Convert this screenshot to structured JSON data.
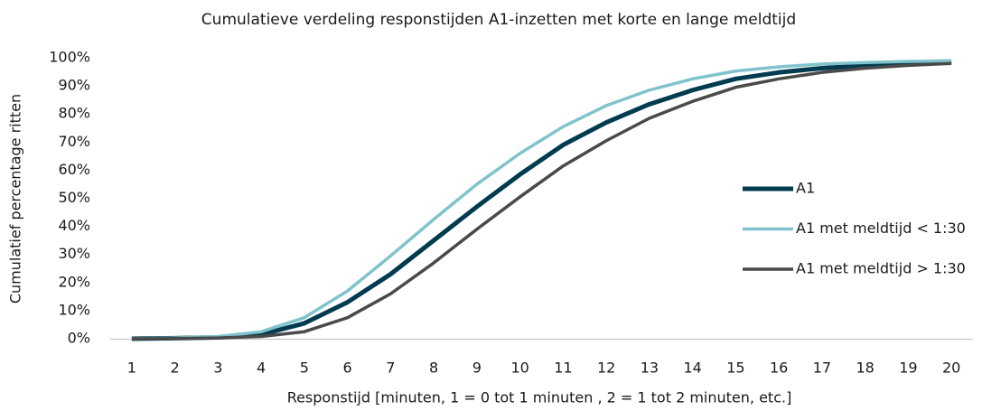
{
  "chart_data": {
    "type": "line",
    "title": "Cumulatieve verdeling responstijden A1-inzetten met korte en lange meldtijd",
    "x_label": "Responstijd [minuten, 1 = 0 tot 1 minuten , 2 = 1 tot 2 minuten, etc.]",
    "y_label": "Cumulatief percentage ritten",
    "categories": [
      "1",
      "2",
      "3",
      "4",
      "5",
      "6",
      "7",
      "8",
      "9",
      "10",
      "11",
      "12",
      "13",
      "14",
      "15",
      "16",
      "17",
      "18",
      "19",
      "20"
    ],
    "series": [
      {
        "name": "A1",
        "color": "#003b4f",
        "width": 5,
        "values": [
          0,
          0.2,
          0.5,
          1.5,
          5.5,
          13,
          23,
          35,
          47,
          58.5,
          69,
          77,
          83.5,
          88.5,
          92.5,
          94.8,
          96.3,
          97.3,
          97.9,
          98.5
        ]
      },
      {
        "name": "A1 met meldtijd < 1:30",
        "color": "#80c3cc",
        "width": 3.5,
        "values": [
          0,
          0.3,
          0.8,
          2.5,
          7.5,
          17,
          29.5,
          42.5,
          55,
          66,
          75.5,
          83,
          88.5,
          92.5,
          95.3,
          96.8,
          97.8,
          98.3,
          98.7,
          99
        ]
      },
      {
        "name": "A1 met meldtijd > 1:30",
        "color": "#4a4a4a",
        "width": 3.5,
        "values": [
          0,
          0.1,
          0.3,
          0.8,
          2.5,
          7.5,
          16,
          27,
          39,
          50.5,
          61.5,
          70.5,
          78.5,
          84.5,
          89.5,
          92.5,
          94.8,
          96.3,
          97.3,
          98
        ]
      }
    ],
    "ylim": [
      0,
      100
    ],
    "yticks": [
      {
        "value": 0,
        "label": "0%"
      },
      {
        "value": 10,
        "label": "10%"
      },
      {
        "value": 20,
        "label": "20%"
      },
      {
        "value": 30,
        "label": "30%"
      },
      {
        "value": 40,
        "label": "40%"
      },
      {
        "value": 50,
        "label": "50%"
      },
      {
        "value": 60,
        "label": "60%"
      },
      {
        "value": 70,
        "label": "70%"
      },
      {
        "value": 80,
        "label": "80%"
      },
      {
        "value": 90,
        "label": "90%"
      },
      {
        "value": 100,
        "label": "100%"
      }
    ],
    "grid": false,
    "legend": "right"
  }
}
